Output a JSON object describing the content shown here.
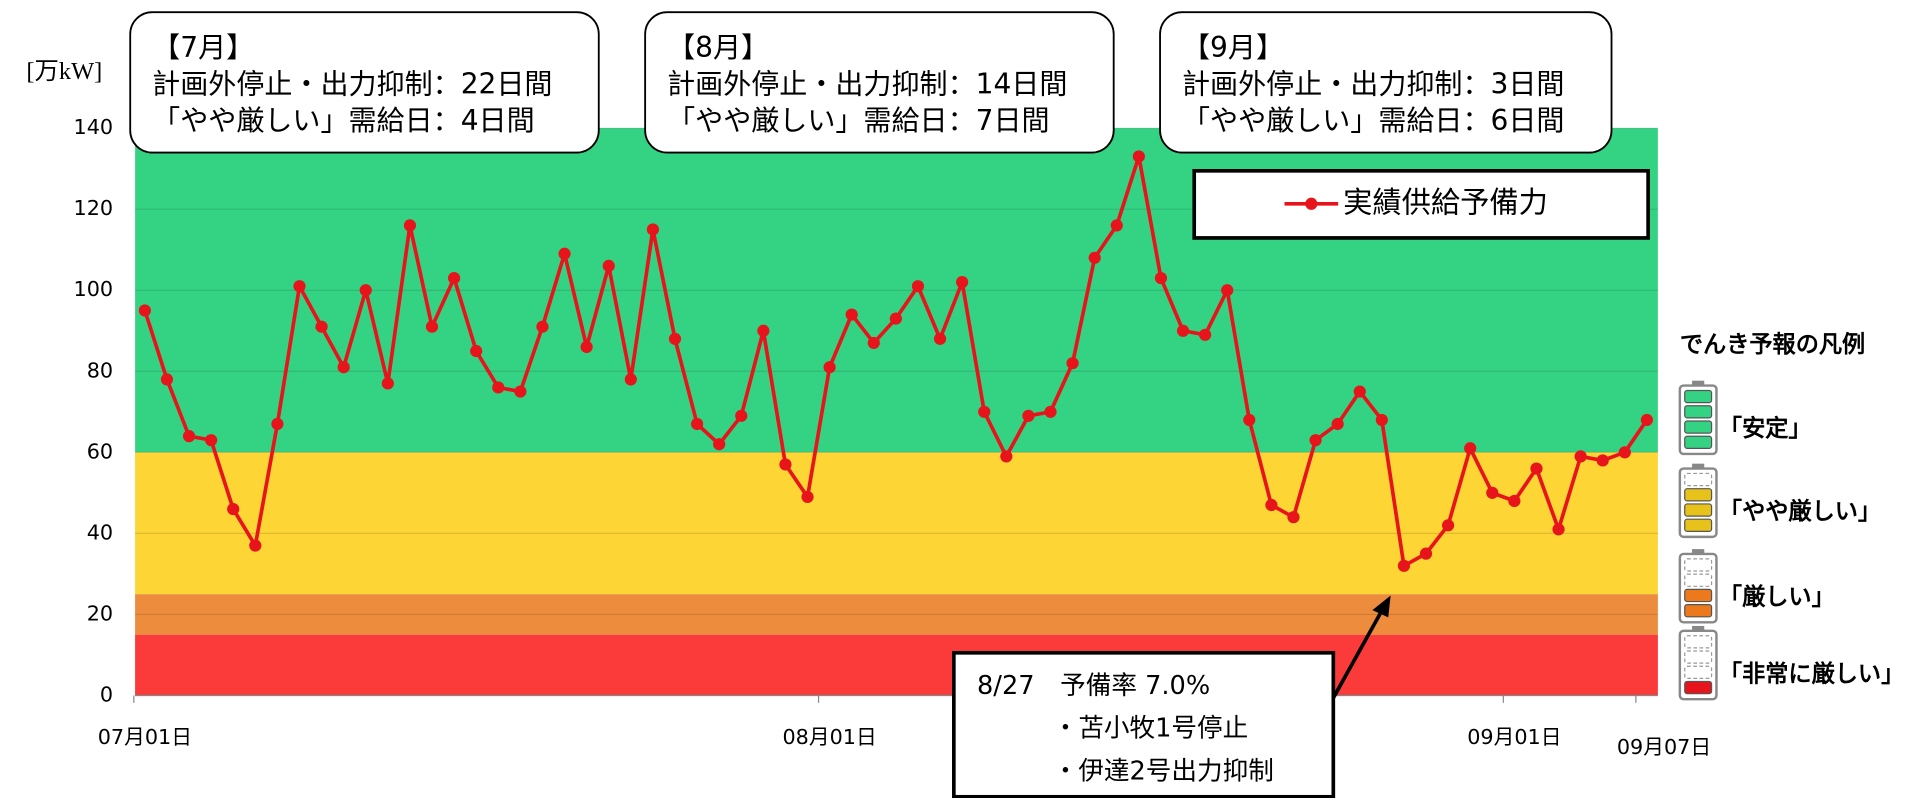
{
  "chart_data": {
    "type": "line",
    "y_axis_label": "[万kW]",
    "categories": [
      "07月01日",
      null,
      null,
      null,
      null,
      null,
      null,
      null,
      null,
      null,
      null,
      null,
      null,
      null,
      null,
      null,
      null,
      null,
      null,
      null,
      null,
      null,
      null,
      null,
      null,
      null,
      null,
      null,
      null,
      null,
      null,
      "08月01日",
      null,
      null,
      null,
      null,
      null,
      null,
      null,
      null,
      null,
      null,
      null,
      null,
      null,
      null,
      null,
      null,
      null,
      null,
      null,
      null,
      null,
      null,
      null,
      null,
      null,
      null,
      null,
      null,
      null,
      null,
      "09月01日",
      null,
      null,
      null,
      null,
      null,
      "09月07日"
    ],
    "series": [
      {
        "name": "実績供給予備力",
        "color": "#e8141c",
        "values": [
          95,
          78,
          64,
          63,
          46,
          37,
          67,
          101,
          91,
          81,
          100,
          77,
          116,
          91,
          103,
          85,
          76,
          75,
          91,
          109,
          86,
          106,
          78,
          115,
          88,
          67,
          62,
          69,
          90,
          57,
          49,
          81,
          94,
          87,
          93,
          101,
          88,
          102,
          70,
          59,
          69,
          70,
          82,
          108,
          116,
          133,
          103,
          90,
          89,
          100,
          68,
          47,
          44,
          63,
          67,
          75,
          68,
          32,
          35,
          42,
          61,
          50,
          48,
          56,
          41,
          59,
          58,
          60,
          68
        ]
      }
    ],
    "ylim": [
      0,
      140
    ],
    "yticks": [
      0,
      20,
      40,
      60,
      80,
      100,
      120,
      140
    ],
    "grid": true,
    "bands": [
      {
        "from": 60,
        "to": 140,
        "color": "#34d384"
      },
      {
        "from": 25,
        "to": 60,
        "color": "#fdd535"
      },
      {
        "from": 15,
        "to": 25,
        "color": "#ec8c3c"
      },
      {
        "from": 0,
        "to": 15,
        "color": "#fb3a3a"
      }
    ],
    "legend_position": "upper right",
    "annotations": [
      {
        "lines": [
          "【7月】",
          "計画外停止・出力抑制：22日間",
          "「やや厳しい」需給日：4日間"
        ]
      },
      {
        "lines": [
          "【8月】",
          "計画外停止・出力抑制：14日間",
          "「やや厳しい」需給日：7日間"
        ]
      },
      {
        "lines": [
          "【9月】",
          "計画外停止・出力抑制：3日間",
          "「やや厳しい」需給日：6日間"
        ]
      }
    ],
    "callout": {
      "lines": [
        "8/27　予備率 7.0%",
        "・苫小牧1号停止",
        "・伊達2号出力抑制"
      ]
    },
    "forecast_legend": {
      "title": "でんき予報の凡例",
      "items": [
        {
          "label": "「安定」",
          "color": "#34d384"
        },
        {
          "label": "「やや厳しい」",
          "color": "#e6c21a"
        },
        {
          "label": "「厳しい」",
          "color": "#ec7a1c"
        },
        {
          "label": "「非常に厳しい」",
          "color": "#e8141c"
        }
      ]
    }
  }
}
